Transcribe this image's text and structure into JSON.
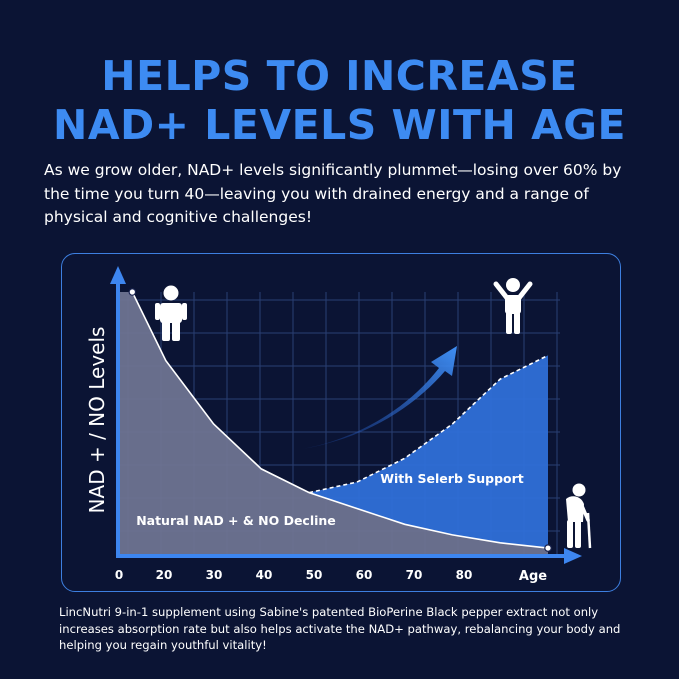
{
  "headline": {
    "line1": "HELPS TO INCREASE",
    "line2": "NAD+ LEVELS WITH AGE"
  },
  "intro_text": "As we grow older, NAD+ levels significantly plummet—losing over 60% by the time you turn 40—leaving you with drained energy and a range of physical and cognitive challenges!",
  "footer_text": "LincNutri 9-in-1 supplement using Sabine's patented BioPerine Black pepper extract not only increases absorption rate but also helps activate the NAD+ pathway, rebalancing your body and helping you regain youthful vitality!",
  "icons": {
    "young": "standing-person-icon",
    "celebrating": "arms-raised-person-icon",
    "elderly": "elderly-person-with-cane-icon",
    "trend": "upward-arrow-icon"
  },
  "colors": {
    "background": "#0b1434",
    "accent": "#3d8bf2",
    "natural_fill": "#6e7391",
    "support_fill": "#2f6fd8",
    "grid": "#2a3f73",
    "axis": "#3d86f0"
  },
  "chart_data": {
    "type": "area",
    "title": "",
    "xlabel": "Age",
    "ylabel": "NAD + / NO Levels",
    "x_ticks": [
      0,
      20,
      30,
      40,
      50,
      60,
      70,
      80
    ],
    "xlim": [
      0,
      90
    ],
    "ylim": [
      0,
      100
    ],
    "grid": true,
    "series": [
      {
        "name": "Natural NAD + & NO Decline",
        "x": [
          3,
          10,
          20,
          30,
          40,
          50,
          60,
          70,
          80,
          90
        ],
        "y": [
          100,
          74,
          50,
          33,
          24,
          18,
          12,
          8,
          5,
          3
        ]
      },
      {
        "name": "With Selerb Support",
        "x": [
          40,
          50,
          60,
          70,
          80,
          90
        ],
        "y": [
          24,
          28,
          37,
          50,
          67,
          76
        ]
      }
    ]
  }
}
